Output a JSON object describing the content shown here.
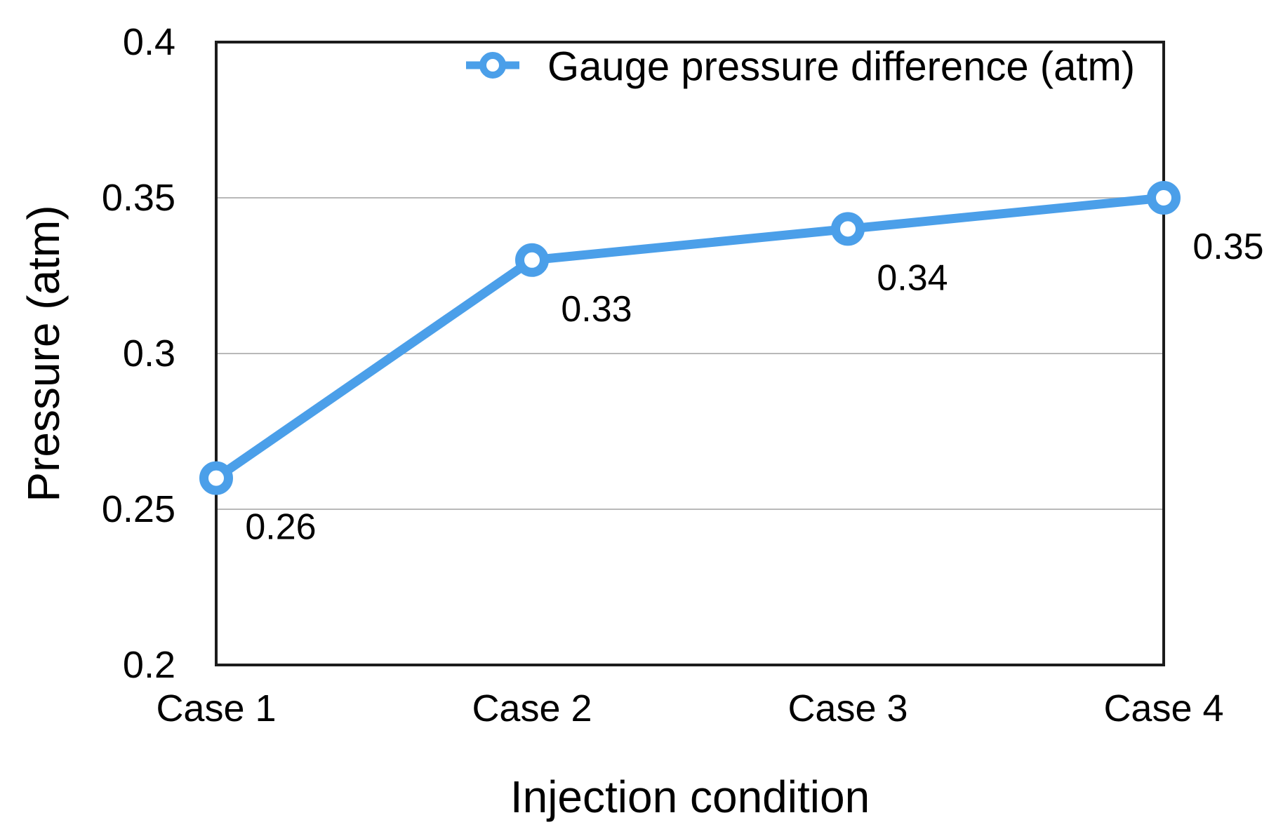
{
  "chart_data": {
    "type": "line",
    "title": "",
    "categories": [
      "Case 1",
      "Case 2",
      "Case 3",
      "Case 4"
    ],
    "series": [
      {
        "name": "Gauge pressure difference (atm)",
        "values": [
          0.26,
          0.33,
          0.34,
          0.35
        ],
        "point_labels": [
          "0.26",
          "0.33",
          "0.34",
          "0.35"
        ],
        "marker": "donut-circle"
      }
    ],
    "xlabel": "Injection condition",
    "ylabel": "Pressure (atm)",
    "ylim": [
      0.2,
      0.4
    ],
    "yticks": [
      0.2,
      0.25,
      0.3,
      0.35,
      0.4
    ],
    "ytick_labels": [
      "0.2",
      "0.25",
      "0.3",
      "0.35",
      "0.4"
    ],
    "grid": "horizontal-only",
    "legend_position": "top-inside"
  },
  "colors": {
    "series_line": "#4b9fe9",
    "marker_fill": "#ffffff",
    "gridline": "#b9b9b9",
    "plot_border": "#1c1c1c",
    "text": "#000000",
    "background": "#ffffff"
  }
}
